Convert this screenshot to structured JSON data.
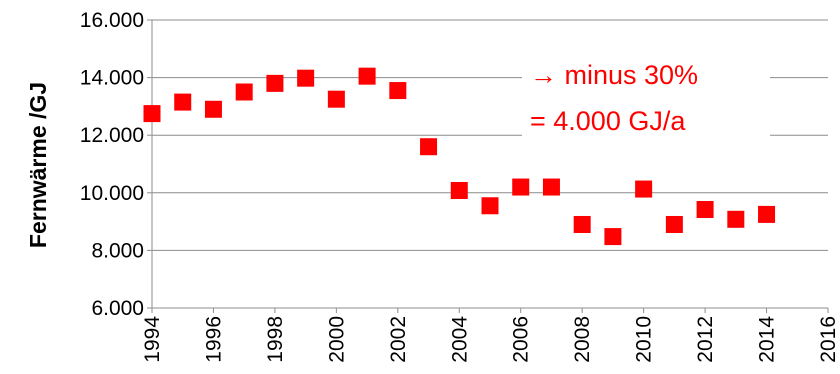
{
  "chart_data": {
    "type": "scatter",
    "ylabel": "Fernwärme /GJ",
    "xlim": [
      1994,
      2016
    ],
    "ylim": [
      6000,
      16000
    ],
    "x_ticks": [
      {
        "value": 1994,
        "label": "1994"
      },
      {
        "value": 1996,
        "label": "1996"
      },
      {
        "value": 1998,
        "label": "1998"
      },
      {
        "value": 2000,
        "label": "2000"
      },
      {
        "value": 2002,
        "label": "2002"
      },
      {
        "value": 2004,
        "label": "2004"
      },
      {
        "value": 2006,
        "label": "2006"
      },
      {
        "value": 2008,
        "label": "2008"
      },
      {
        "value": 2010,
        "label": "2010"
      },
      {
        "value": 2012,
        "label": "2012"
      },
      {
        "value": 2014,
        "label": "2014"
      },
      {
        "value": 2016,
        "label": "2016"
      }
    ],
    "y_ticks": [
      {
        "value": 6000,
        "label": "6.000"
      },
      {
        "value": 8000,
        "label": "8.000"
      },
      {
        "value": 10000,
        "label": "10.000"
      },
      {
        "value": 12000,
        "label": "12.000"
      },
      {
        "value": 14000,
        "label": "14.000"
      },
      {
        "value": 16000,
        "label": "16.000"
      }
    ],
    "grid": "horizontal",
    "marker_color": "#ff0000",
    "series": [
      {
        "x": [
          1994,
          1995,
          1996,
          1997,
          1998,
          1999,
          2000,
          2001,
          2002,
          2003,
          2004,
          2005,
          2006,
          2007,
          2008,
          2009,
          2010,
          2011,
          2012,
          2013,
          2014
        ],
        "y": [
          12750,
          13150,
          12900,
          13500,
          13800,
          13980,
          13250,
          14050,
          13550,
          11600,
          10080,
          9550,
          10200,
          10200,
          8900,
          8480,
          10130,
          8900,
          9420,
          9080,
          9250
        ]
      }
    ],
    "annotations": [
      {
        "text": "→ minus 30%",
        "color": "#ff0000"
      },
      {
        "text": "= 4.000 GJ/a",
        "color": "#ff0000"
      }
    ]
  }
}
